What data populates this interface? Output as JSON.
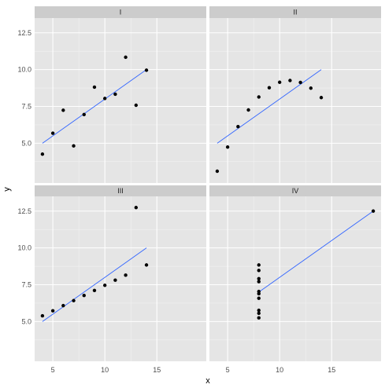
{
  "chart_data": {
    "type": "scatter",
    "title": "",
    "xlabel": "x",
    "ylabel": "y",
    "xlim": [
      3.25,
      19.75
    ],
    "ylim": [
      2.3,
      13.5
    ],
    "x_ticks": [
      5,
      10,
      15
    ],
    "y_ticks": [
      5.0,
      7.5,
      10.0,
      12.5
    ],
    "y_tick_labels": [
      "5.0",
      "7.5",
      "10.0",
      "12.5"
    ],
    "grid": true,
    "colors": {
      "panel_bg": "#e5e5e5",
      "strip_bg": "#cccccc",
      "grid_major": "#ffffff",
      "grid_minor": "#f2f2f2",
      "points": "#000000",
      "fit_line": "#3366ff"
    },
    "panels": [
      {
        "label": "I",
        "points": [
          [
            10,
            8.04
          ],
          [
            8,
            6.95
          ],
          [
            13,
            7.58
          ],
          [
            9,
            8.81
          ],
          [
            11,
            8.33
          ],
          [
            14,
            9.96
          ],
          [
            6,
            7.24
          ],
          [
            4,
            4.26
          ],
          [
            12,
            10.84
          ],
          [
            7,
            4.82
          ],
          [
            5,
            5.68
          ]
        ],
        "fit": {
          "intercept": 3.0,
          "slope": 0.5,
          "x_range": [
            4,
            14
          ]
        }
      },
      {
        "label": "II",
        "points": [
          [
            10,
            9.14
          ],
          [
            8,
            8.14
          ],
          [
            13,
            8.74
          ],
          [
            9,
            8.77
          ],
          [
            11,
            9.26
          ],
          [
            14,
            8.1
          ],
          [
            6,
            6.13
          ],
          [
            4,
            3.1
          ],
          [
            12,
            9.13
          ],
          [
            7,
            7.26
          ],
          [
            5,
            4.74
          ]
        ],
        "fit": {
          "intercept": 3.0,
          "slope": 0.5,
          "x_range": [
            4,
            14
          ]
        }
      },
      {
        "label": "III",
        "points": [
          [
            10,
            7.46
          ],
          [
            8,
            6.77
          ],
          [
            13,
            12.74
          ],
          [
            9,
            7.11
          ],
          [
            11,
            7.81
          ],
          [
            14,
            8.84
          ],
          [
            6,
            6.08
          ],
          [
            4,
            5.39
          ],
          [
            12,
            8.15
          ],
          [
            7,
            6.42
          ],
          [
            5,
            5.73
          ]
        ],
        "fit": {
          "intercept": 3.0,
          "slope": 0.5,
          "x_range": [
            4,
            14
          ]
        }
      },
      {
        "label": "IV",
        "points": [
          [
            8,
            6.58
          ],
          [
            8,
            5.76
          ],
          [
            8,
            7.71
          ],
          [
            8,
            8.84
          ],
          [
            8,
            8.47
          ],
          [
            8,
            7.04
          ],
          [
            8,
            5.25
          ],
          [
            19,
            12.5
          ],
          [
            8,
            5.56
          ],
          [
            8,
            7.91
          ],
          [
            8,
            6.89
          ]
        ],
        "fit": {
          "intercept": 3.0,
          "slope": 0.5,
          "x_range": [
            8,
            19
          ]
        }
      }
    ]
  }
}
